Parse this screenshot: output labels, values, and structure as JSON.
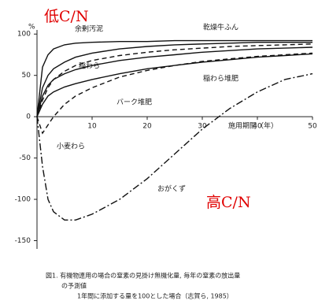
{
  "chart_data": {
    "type": "line",
    "ylabel": "%",
    "xlabel": "施用期間（年）",
    "annotations": [
      "低C/N",
      "高C/N"
    ],
    "caption": [
      "図1. 有機物連用の場合の窒素の見掛け無機化量, 毎年の窒素の放出量",
      "の予測値",
      "1年間に添加する量を100とした場合（志賀ら, 1985）"
    ],
    "x": [
      0,
      1,
      2,
      3,
      5,
      7,
      10,
      15,
      20,
      25,
      30,
      35,
      40,
      45,
      50
    ],
    "xlim": [
      0,
      50
    ],
    "xticks": [
      10,
      20,
      30,
      40,
      50
    ],
    "ylim": [
      -160,
      105
    ],
    "yticks": [
      100,
      50,
      0,
      -50,
      -100,
      -150
    ],
    "series": [
      {
        "name": "余剰汚泥",
        "color": "#111",
        "style": "solid",
        "values": [
          0,
          60,
          75,
          82,
          87,
          89,
          90,
          91,
          91,
          92,
          92,
          92,
          92,
          92,
          92
        ]
      },
      {
        "name": "乾燥牛ふん",
        "color": "#111",
        "style": "solid",
        "values": [
          0,
          35,
          50,
          58,
          66,
          72,
          77,
          82,
          85,
          87,
          88,
          89,
          90,
          90,
          90
        ]
      },
      {
        "name": "稲わら",
        "color": "#111",
        "style": "dashed",
        "values": [
          0,
          20,
          35,
          45,
          55,
          62,
          68,
          74,
          78,
          81,
          83,
          85,
          86,
          87,
          88
        ]
      },
      {
        "name": "稲わら堆肥",
        "color": "#111",
        "style": "solid",
        "values": [
          0,
          25,
          38,
          45,
          52,
          57,
          62,
          68,
          72,
          75,
          78,
          80,
          82,
          83,
          84
        ]
      },
      {
        "name": "バーク堆肥",
        "color": "#111",
        "style": "solid",
        "values": [
          0,
          15,
          25,
          30,
          36,
          40,
          45,
          52,
          58,
          62,
          66,
          69,
          72,
          74,
          76
        ]
      },
      {
        "name": "小麦わら",
        "color": "#111",
        "style": "dashed",
        "values": [
          0,
          -20,
          -10,
          0,
          15,
          25,
          35,
          48,
          56,
          62,
          67,
          70,
          73,
          75,
          77
        ]
      },
      {
        "name": "おがくず",
        "color": "#111",
        "style": "dashdot",
        "values": [
          0,
          -60,
          -100,
          -115,
          -125,
          -125,
          -118,
          -100,
          -75,
          -45,
          -15,
          10,
          30,
          45,
          52
        ]
      }
    ]
  }
}
